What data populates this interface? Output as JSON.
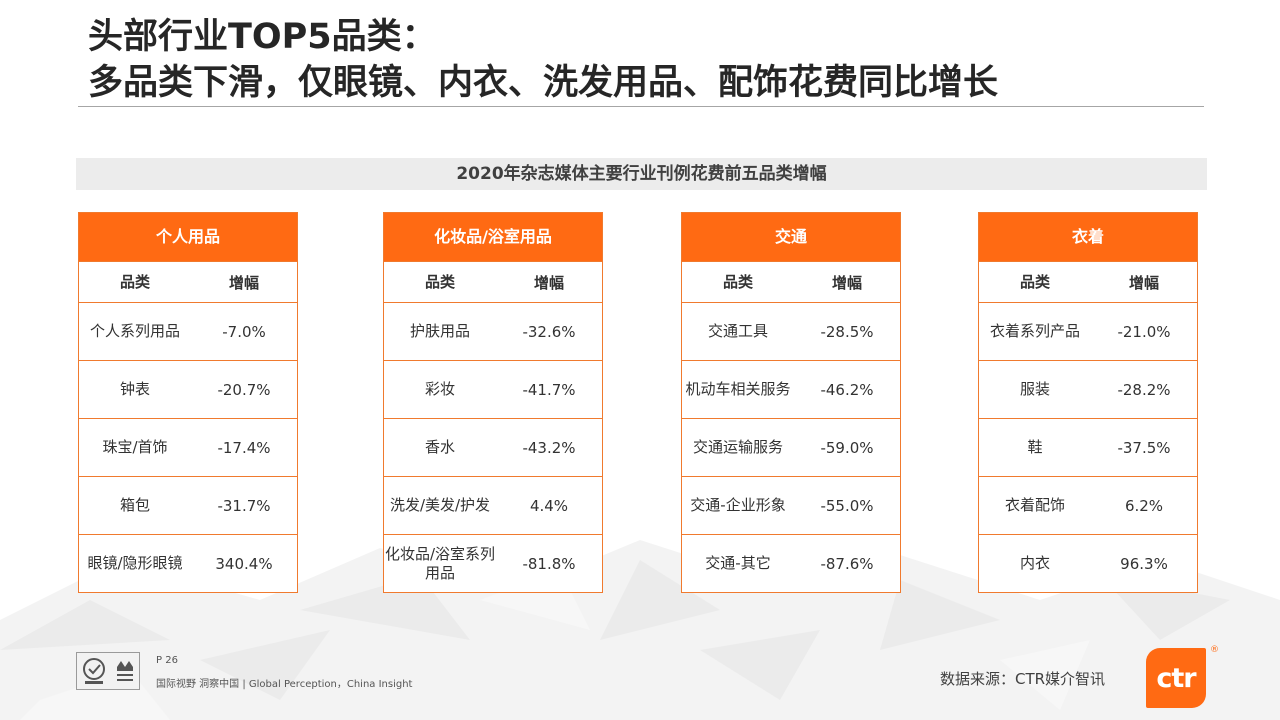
{
  "title": {
    "line1": "头部行业TOP5品类：",
    "line2": "多品类下滑，仅眼镜、内衣、洗发用品、配饰花费同比增长"
  },
  "subtitle": "2020年杂志媒体主要行业刊例花费前五品类增幅",
  "column_headers": {
    "category": "品类",
    "growth": "增幅"
  },
  "tables": [
    {
      "name": "个人用品",
      "rows": [
        {
          "category": "个人系列用品",
          "growth": "-7.0%"
        },
        {
          "category": "钟表",
          "growth": "-20.7%"
        },
        {
          "category": "珠宝/首饰",
          "growth": "-17.4%"
        },
        {
          "category": "箱包",
          "growth": "-31.7%"
        },
        {
          "category": "眼镜/隐形眼镜",
          "growth": "340.4%"
        }
      ]
    },
    {
      "name": "化妆品/浴室用品",
      "rows": [
        {
          "category": "护肤用品",
          "growth": "-32.6%"
        },
        {
          "category": "彩妆",
          "growth": "-41.7%"
        },
        {
          "category": "香水",
          "growth": "-43.2%"
        },
        {
          "category": "洗发/美发/护发",
          "growth": "4.4%"
        },
        {
          "category": "化妆品/浴室系列用品",
          "growth": "-81.8%"
        }
      ]
    },
    {
      "name": "交通",
      "rows": [
        {
          "category": "交通工具",
          "growth": "-28.5%"
        },
        {
          "category": "机动车相关服务",
          "growth": "-46.2%"
        },
        {
          "category": "交通运输服务",
          "growth": "-59.0%"
        },
        {
          "category": "交通-企业形象",
          "growth": "-55.0%"
        },
        {
          "category": "交通-其它",
          "growth": "-87.6%"
        }
      ]
    },
    {
      "name": "衣着",
      "rows": [
        {
          "category": "衣着系列产品",
          "growth": "-21.0%"
        },
        {
          "category": "服装",
          "growth": "-28.2%"
        },
        {
          "category": "鞋",
          "growth": "-37.5%"
        },
        {
          "category": "衣着配饰",
          "growth": "6.2%"
        },
        {
          "category": "内衣",
          "growth": "96.3%"
        }
      ]
    }
  ],
  "footer": {
    "page": "P 26",
    "slogan": "国际视野  洞察中国 |  Global Perception，China Insight",
    "source": "数据来源：CTR媒介智讯",
    "logo_text": "ctr",
    "logo_mark": "®"
  },
  "colors": {
    "accent": "#ff6a13",
    "border": "#f07a2e",
    "title": "#262626",
    "subtitle_bg": "#ececec"
  }
}
